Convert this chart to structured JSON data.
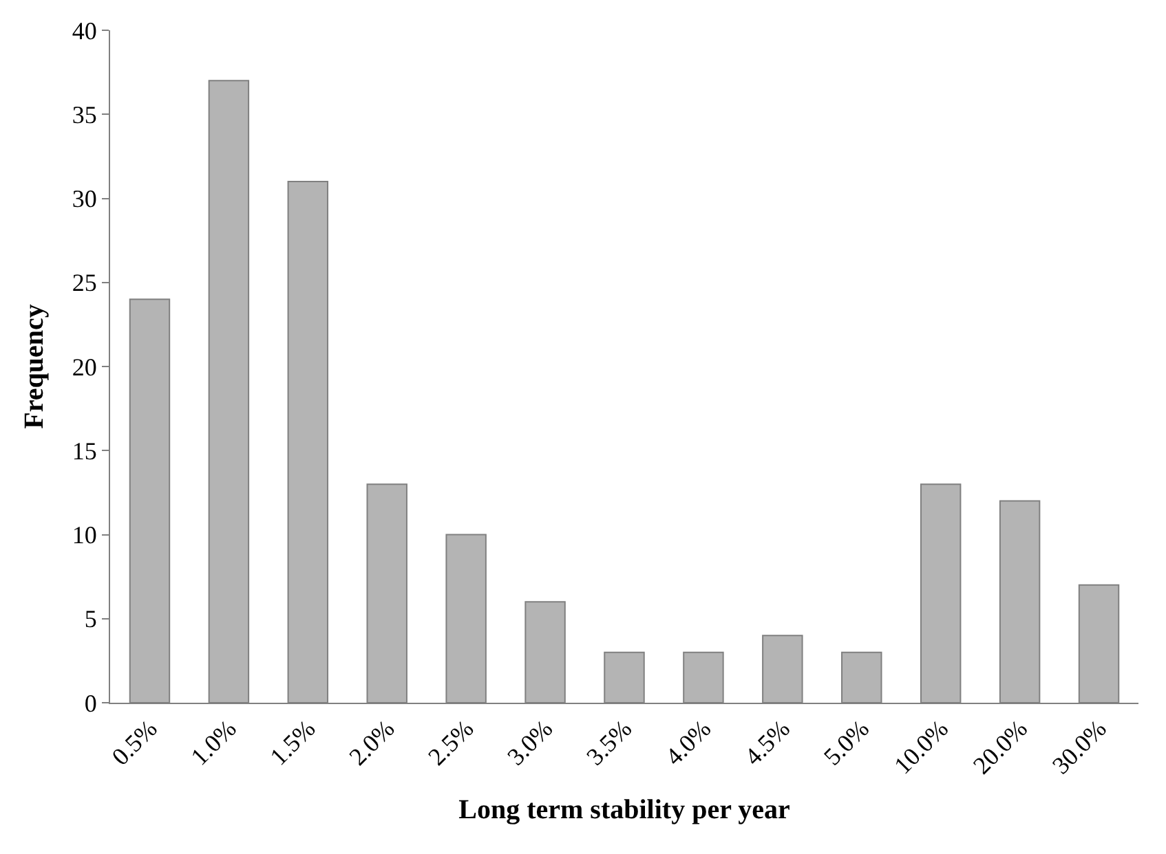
{
  "chart_data": {
    "type": "bar",
    "xlabel": "Long term stability per year",
    "ylabel": "Frequency",
    "categories": [
      "0.5%",
      "1.0%",
      "1.5%",
      "2.0%",
      "2.5%",
      "3.0%",
      "3.5%",
      "4.0%",
      "4.5%",
      "5.0%",
      "10.0%",
      "20.0%",
      "30.0%"
    ],
    "values": [
      24,
      37,
      31,
      13,
      10,
      6,
      3,
      3,
      4,
      3,
      13,
      12,
      7
    ],
    "color": "#b4b4b4",
    "ylim": [
      0,
      40
    ],
    "yticks": [
      0,
      5,
      10,
      15,
      20,
      25,
      30,
      35,
      40
    ]
  }
}
